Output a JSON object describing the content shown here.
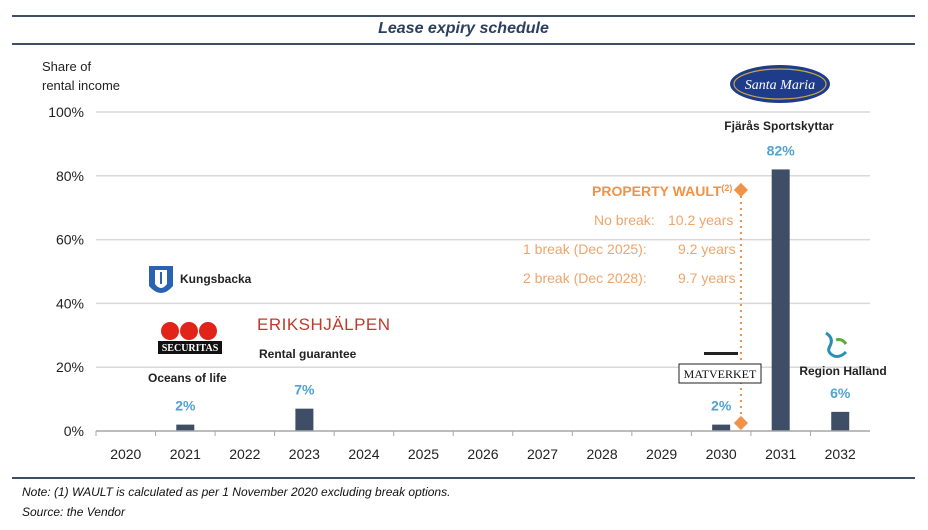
{
  "header": {
    "title": "Lease expiry schedule"
  },
  "y_axis_label": [
    "Share of",
    "rental income"
  ],
  "footer": {
    "note": "Note: (1) WAULT is calculated as per 1 November 2020 excluding break options.",
    "source": "Source: the Vendor"
  },
  "colors": {
    "bar": "#3d4e66",
    "rule": "#3d4e66",
    "label_blue": "#4fa3cf",
    "wault_orange": "#f09248",
    "grid": "#d9d9d9"
  },
  "chart_data": {
    "type": "bar",
    "categories": [
      "2020",
      "2021",
      "2022",
      "2023",
      "2024",
      "2025",
      "2026",
      "2027",
      "2028",
      "2029",
      "2030",
      "2031",
      "2032"
    ],
    "values": [
      0,
      2,
      0,
      7,
      0,
      0,
      0,
      0,
      0,
      0,
      2,
      82,
      6
    ],
    "ylim": [
      0,
      100
    ],
    "yticks": [
      0,
      20,
      40,
      60,
      80,
      100
    ],
    "ytick_labels": [
      "0%",
      "20%",
      "40%",
      "60%",
      "80%",
      "100%"
    ],
    "data_labels": [
      {
        "category": "2021",
        "text": "2%"
      },
      {
        "category": "2023",
        "text": "7%"
      },
      {
        "category": "2030",
        "text": "2%"
      },
      {
        "category": "2031",
        "text": "82%"
      },
      {
        "category": "2032",
        "text": "6%"
      }
    ],
    "grid": true,
    "wault_marker_category": "2030",
    "wault": {
      "title": "PROPERTY WAULT",
      "superscript": "(2)",
      "lines": [
        {
          "label": "No break:",
          "value": "10.2 years"
        },
        {
          "label": "1 break (Dec 2025):",
          "value": "9.2 years"
        },
        {
          "label": "2 break (Dec 2028):",
          "value": "9.7 years"
        }
      ]
    },
    "tenants": {
      "kungsbacka": "Kungsbacka",
      "securitas": "SECURITAS",
      "oceans": "Oceans of life",
      "erikshjalpen": "ERIKSHJÄLPEN",
      "rental_guarantee": "Rental guarantee",
      "matverket": "MATVERKET",
      "santa_maria": "Santa Maria",
      "fjaras": "Fjärås Sportskyttar",
      "region_halland": "Region Halland"
    }
  }
}
